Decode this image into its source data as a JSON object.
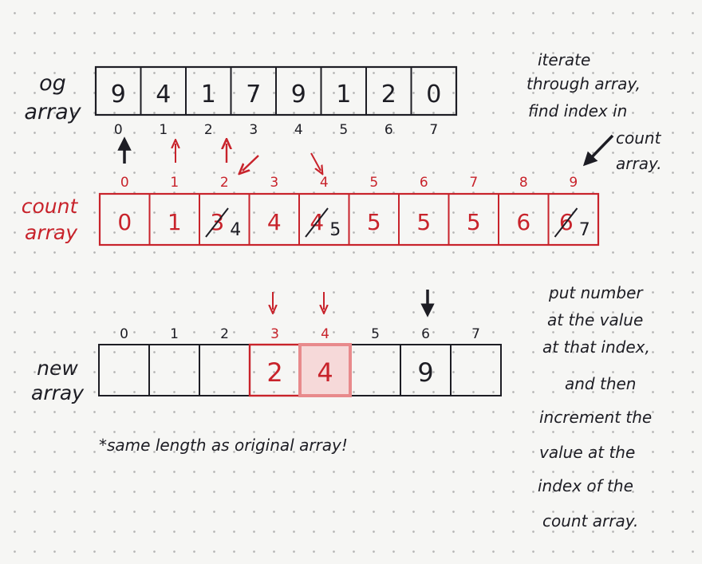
{
  "colors": {
    "ink": "#1d1d24",
    "red": "#c8232b",
    "red_highlight": "#e88a8c",
    "paper": "#f6f6f4"
  },
  "og_array": {
    "label_line1": "og",
    "label_line2": "array",
    "values": [
      "9",
      "4",
      "1",
      "7",
      "9",
      "1",
      "2",
      "0"
    ],
    "indices": [
      "0",
      "1",
      "2",
      "3",
      "4",
      "5",
      "6",
      "7"
    ]
  },
  "count_array": {
    "label_line1": "count",
    "label_line2": "array",
    "indices": [
      "0",
      "1",
      "2",
      "3",
      "4",
      "5",
      "6",
      "7",
      "8",
      "9"
    ],
    "cells": [
      {
        "value": "0",
        "old": ""
      },
      {
        "value": "1",
        "old": ""
      },
      {
        "value": "4",
        "old": "3"
      },
      {
        "value": "4",
        "old": ""
      },
      {
        "value": "5",
        "old": "4"
      },
      {
        "value": "5",
        "old": ""
      },
      {
        "value": "5",
        "old": ""
      },
      {
        "value": "5",
        "old": ""
      },
      {
        "value": "6",
        "old": ""
      },
      {
        "value": "7",
        "old": "6"
      }
    ]
  },
  "new_array": {
    "label_line1": "new",
    "label_line2": "array",
    "indices": [
      "0",
      "1",
      "2",
      "3",
      "4",
      "5",
      "6",
      "7"
    ],
    "values": [
      "",
      "",
      "",
      "2",
      "4",
      "",
      "9",
      ""
    ],
    "red_cells": [
      3,
      4
    ]
  },
  "notes": {
    "iterate": [
      "iterate",
      "through array,",
      "find index in",
      "count",
      "array."
    ],
    "put_number": [
      "put number",
      "at the value",
      "at that index,",
      "and then",
      "increment the",
      "value at the",
      "index of the",
      "count array."
    ],
    "same_length": "*same length as original array!"
  }
}
